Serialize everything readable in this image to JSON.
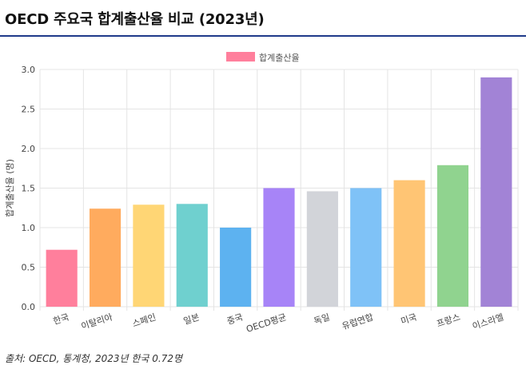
{
  "title": "OECD 주요국 합계출산율 비교 (2023년)",
  "source": "출처: OECD, 통계청, 2023년 한국 0.72명",
  "chart_data": {
    "type": "bar",
    "legend": {
      "label": "합계출산율",
      "color": "#ff7f9c",
      "placement": "top-center"
    },
    "ylabel": "합계출산율 (명)",
    "xlabel": "",
    "ylim": [
      0,
      3.0
    ],
    "yticks": [
      "0.0",
      "0.5",
      "1.0",
      "1.5",
      "2.0",
      "2.5",
      "3.0"
    ],
    "grid": true,
    "categories": [
      "한국",
      "이탈리아",
      "스페인",
      "일본",
      "중국",
      "OECD평균",
      "독일",
      "유럽연합",
      "미국",
      "프랑스",
      "이스라엘"
    ],
    "values": [
      0.72,
      1.24,
      1.29,
      1.3,
      1.0,
      1.5,
      1.46,
      1.5,
      1.6,
      1.79,
      2.9
    ],
    "colors": [
      "#ff7f9c",
      "#ffab5e",
      "#ffd675",
      "#6fd0cf",
      "#5db2f0",
      "#a784f7",
      "#d2d4d9",
      "#7fc2f7",
      "#ffc574",
      "#90d38f",
      "#a283d6"
    ]
  }
}
